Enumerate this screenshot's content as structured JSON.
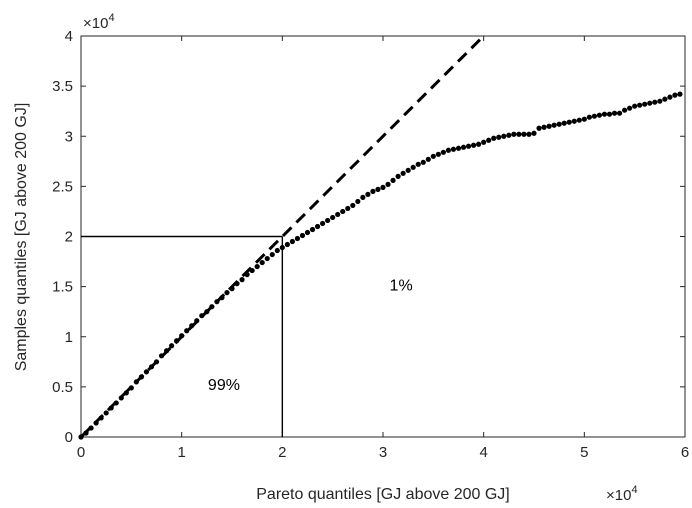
{
  "chart_data": {
    "type": "scatter",
    "xlabel": "Pareto quantiles [GJ above 200 GJ]",
    "ylabel": "Samples quantiles [GJ above 200 GJ]",
    "x_multiplier": "×10",
    "x_multiplier_exp": "4",
    "y_multiplier": "×10",
    "y_multiplier_exp": "4",
    "xlim": [
      0,
      6
    ],
    "ylim": [
      0,
      4
    ],
    "xticks": [
      "0",
      "1",
      "2",
      "3",
      "4",
      "5",
      "6"
    ],
    "yticks": [
      "0",
      "0.5",
      "1",
      "1.5",
      "2",
      "2.5",
      "3",
      "3.5",
      "4"
    ],
    "grid": false,
    "reference_line": {
      "style": "dashed",
      "slope": 1,
      "from": [
        0,
        0
      ],
      "to": [
        4,
        4
      ]
    },
    "threshold": {
      "x": 2,
      "y": 2
    },
    "annotations": [
      {
        "text": "99%",
        "x": 1.42,
        "y": 0.47
      },
      {
        "text": "1%",
        "x": 3.18,
        "y": 1.46
      }
    ],
    "points": [
      [
        0.0,
        0.0
      ],
      [
        0.05,
        0.04
      ],
      [
        0.1,
        0.09
      ],
      [
        0.15,
        0.14
      ],
      [
        0.2,
        0.19
      ],
      [
        0.25,
        0.24
      ],
      [
        0.3,
        0.29
      ],
      [
        0.35,
        0.34
      ],
      [
        0.4,
        0.39
      ],
      [
        0.45,
        0.44
      ],
      [
        0.5,
        0.49
      ],
      [
        0.55,
        0.55
      ],
      [
        0.6,
        0.6
      ],
      [
        0.65,
        0.65
      ],
      [
        0.7,
        0.7
      ],
      [
        0.75,
        0.75
      ],
      [
        0.8,
        0.81
      ],
      [
        0.85,
        0.86
      ],
      [
        0.9,
        0.91
      ],
      [
        0.95,
        0.96
      ],
      [
        1.0,
        1.01
      ],
      [
        1.05,
        1.06
      ],
      [
        1.1,
        1.11
      ],
      [
        1.15,
        1.16
      ],
      [
        1.2,
        1.21
      ],
      [
        1.25,
        1.25
      ],
      [
        1.3,
        1.3
      ],
      [
        1.35,
        1.35
      ],
      [
        1.4,
        1.39
      ],
      [
        1.45,
        1.44
      ],
      [
        1.5,
        1.48
      ],
      [
        1.55,
        1.53
      ],
      [
        1.6,
        1.57
      ],
      [
        1.65,
        1.62
      ],
      [
        1.7,
        1.66
      ],
      [
        1.75,
        1.7
      ],
      [
        1.8,
        1.74
      ],
      [
        1.85,
        1.78
      ],
      [
        1.9,
        1.82
      ],
      [
        1.95,
        1.86
      ],
      [
        2.0,
        1.89
      ],
      [
        2.05,
        1.92
      ],
      [
        2.1,
        1.95
      ],
      [
        2.15,
        1.98
      ],
      [
        2.2,
        2.01
      ],
      [
        2.25,
        2.04
      ],
      [
        2.3,
        2.07
      ],
      [
        2.35,
        2.1
      ],
      [
        2.4,
        2.13
      ],
      [
        2.45,
        2.16
      ],
      [
        2.5,
        2.19
      ],
      [
        2.55,
        2.22
      ],
      [
        2.6,
        2.25
      ],
      [
        2.65,
        2.28
      ],
      [
        2.7,
        2.31
      ],
      [
        2.75,
        2.35
      ],
      [
        2.8,
        2.39
      ],
      [
        2.85,
        2.42
      ],
      [
        2.9,
        2.45
      ],
      [
        2.95,
        2.47
      ],
      [
        3.0,
        2.49
      ],
      [
        3.05,
        2.52
      ],
      [
        3.1,
        2.56
      ],
      [
        3.15,
        2.6
      ],
      [
        3.2,
        2.63
      ],
      [
        3.25,
        2.66
      ],
      [
        3.3,
        2.69
      ],
      [
        3.35,
        2.72
      ],
      [
        3.4,
        2.74
      ],
      [
        3.45,
        2.77
      ],
      [
        3.5,
        2.8
      ],
      [
        3.55,
        2.82
      ],
      [
        3.6,
        2.84
      ],
      [
        3.65,
        2.86
      ],
      [
        3.7,
        2.87
      ],
      [
        3.75,
        2.88
      ],
      [
        3.8,
        2.89
      ],
      [
        3.85,
        2.9
      ],
      [
        3.9,
        2.91
      ],
      [
        3.95,
        2.92
      ],
      [
        4.0,
        2.94
      ],
      [
        4.05,
        2.96
      ],
      [
        4.1,
        2.98
      ],
      [
        4.15,
        2.99
      ],
      [
        4.2,
        3.0
      ],
      [
        4.25,
        3.01
      ],
      [
        4.3,
        3.02
      ],
      [
        4.35,
        3.02
      ],
      [
        4.4,
        3.02
      ],
      [
        4.45,
        3.02
      ],
      [
        4.5,
        3.03
      ],
      [
        4.55,
        3.08
      ],
      [
        4.6,
        3.09
      ],
      [
        4.65,
        3.1
      ],
      [
        4.7,
        3.11
      ],
      [
        4.75,
        3.12
      ],
      [
        4.8,
        3.13
      ],
      [
        4.85,
        3.14
      ],
      [
        4.9,
        3.15
      ],
      [
        4.95,
        3.16
      ],
      [
        5.0,
        3.17
      ],
      [
        5.05,
        3.19
      ],
      [
        5.1,
        3.2
      ],
      [
        5.15,
        3.21
      ],
      [
        5.2,
        3.22
      ],
      [
        5.25,
        3.22
      ],
      [
        5.3,
        3.23
      ],
      [
        5.35,
        3.23
      ],
      [
        5.4,
        3.26
      ],
      [
        5.45,
        3.28
      ],
      [
        5.5,
        3.3
      ],
      [
        5.55,
        3.31
      ],
      [
        5.6,
        3.32
      ],
      [
        5.65,
        3.33
      ],
      [
        5.7,
        3.34
      ],
      [
        5.75,
        3.35
      ],
      [
        5.8,
        3.37
      ],
      [
        5.85,
        3.39
      ],
      [
        5.9,
        3.41
      ],
      [
        5.95,
        3.42
      ]
    ]
  }
}
